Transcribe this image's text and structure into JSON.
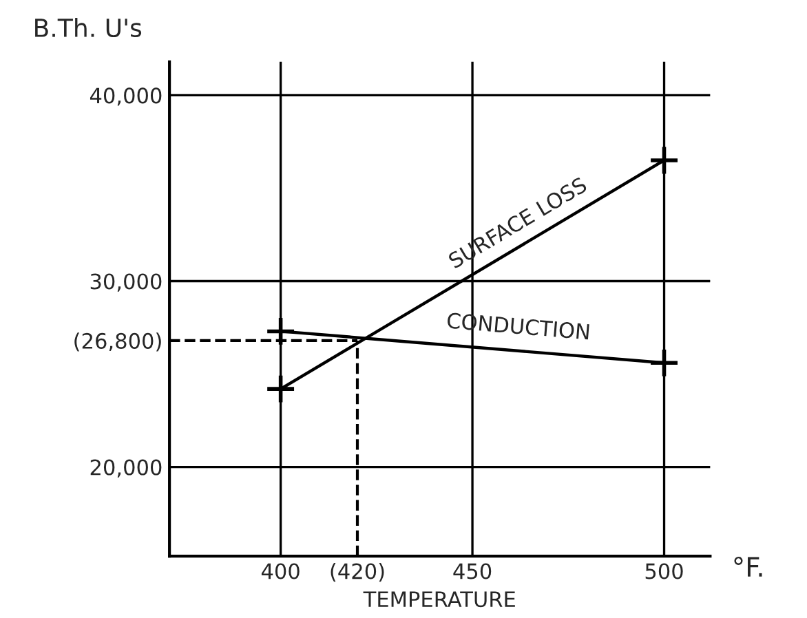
{
  "chart_data": {
    "type": "line",
    "xlabel": "TEMPERATURE",
    "ylabel": "B.Th. U's",
    "x": [
      400,
      500
    ],
    "series": [
      {
        "name": "SURFACE LOSS",
        "color": "#000000",
        "values": [
          24200,
          36500
        ]
      },
      {
        "name": "CONDUCTION",
        "color": "#000000",
        "values": [
          27300,
          25600
        ]
      }
    ],
    "xlim": [
      371,
      512
    ],
    "ylim": [
      15200,
      41800
    ],
    "xticks": [
      400,
      {
        "value": 420,
        "label": "(420)"
      },
      450,
      500
    ],
    "yticks": [
      {
        "value": 20000,
        "label": "20,000"
      },
      {
        "value": 26800,
        "label": "(26,800)"
      },
      {
        "value": 30000,
        "label": "30,000"
      },
      {
        "value": 40000,
        "label": "40,000"
      }
    ],
    "ref_lines": [
      {
        "axis": "y",
        "value": 26800,
        "line_style": "dashed"
      },
      {
        "axis": "x",
        "value": 420,
        "line_style": "dashed"
      }
    ],
    "annotations": [
      "°F."
    ],
    "grid": true,
    "marker": "cross",
    "line_style": "solid",
    "legend": false
  }
}
